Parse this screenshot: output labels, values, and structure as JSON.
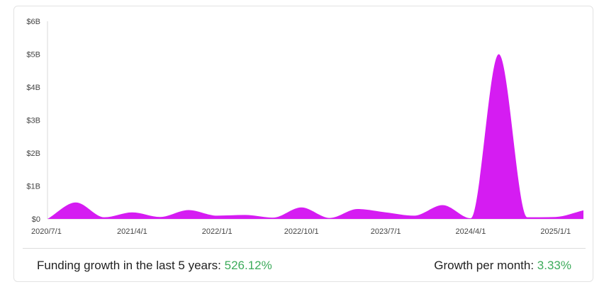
{
  "chart_data": {
    "type": "area",
    "title": "",
    "xlabel": "",
    "ylabel": "",
    "ylim": [
      0,
      6
    ],
    "y_unit": "$B",
    "y_ticks": [
      {
        "value": 0,
        "label": "$0"
      },
      {
        "value": 1,
        "label": "$1B"
      },
      {
        "value": 2,
        "label": "$2B"
      },
      {
        "value": 3,
        "label": "$3B"
      },
      {
        "value": 4,
        "label": "$4B"
      },
      {
        "value": 5,
        "label": "$5B"
      },
      {
        "value": 6,
        "label": "$6B"
      }
    ],
    "x_range": [
      "2020-07-01",
      "2025-04-01"
    ],
    "x_ticks": [
      {
        "date": "2020-07-01",
        "label": "2020/7/1"
      },
      {
        "date": "2021-04-01",
        "label": "2021/4/1"
      },
      {
        "date": "2022-01-01",
        "label": "2022/1/1"
      },
      {
        "date": "2022-10-01",
        "label": "2022/10/1"
      },
      {
        "date": "2023-07-01",
        "label": "2023/7/1"
      },
      {
        "date": "2024-04-01",
        "label": "2024/4/1"
      },
      {
        "date": "2025-01-01",
        "label": "2025/1/1"
      }
    ],
    "grid": false,
    "color": "#d51cf2",
    "series": [
      {
        "points": [
          {
            "x": "2020-07-01",
            "y": 0.0
          },
          {
            "x": "2020-10-01",
            "y": 0.5
          },
          {
            "x": "2021-01-01",
            "y": 0.05
          },
          {
            "x": "2021-04-01",
            "y": 0.2
          },
          {
            "x": "2021-07-01",
            "y": 0.06
          },
          {
            "x": "2021-10-01",
            "y": 0.27
          },
          {
            "x": "2022-01-01",
            "y": 0.1
          },
          {
            "x": "2022-04-01",
            "y": 0.12
          },
          {
            "x": "2022-07-01",
            "y": 0.04
          },
          {
            "x": "2022-10-01",
            "y": 0.35
          },
          {
            "x": "2023-01-01",
            "y": 0.03
          },
          {
            "x": "2023-04-01",
            "y": 0.3
          },
          {
            "x": "2023-07-01",
            "y": 0.2
          },
          {
            "x": "2023-10-01",
            "y": 0.1
          },
          {
            "x": "2024-01-01",
            "y": 0.42
          },
          {
            "x": "2024-04-01",
            "y": 0.02
          },
          {
            "x": "2024-07-01",
            "y": 5.0
          },
          {
            "x": "2024-10-01",
            "y": 0.05
          },
          {
            "x": "2025-01-01",
            "y": 0.06
          },
          {
            "x": "2025-04-01",
            "y": 0.26
          }
        ]
      }
    ]
  },
  "stats": {
    "growth_label": "Funding growth in the last 5 years:",
    "growth_value": "526.12%",
    "monthly_label": "Growth per month:",
    "monthly_value": "3.33%"
  },
  "colors": {
    "area": "#d51cf2",
    "positive": "#3dab5b"
  }
}
